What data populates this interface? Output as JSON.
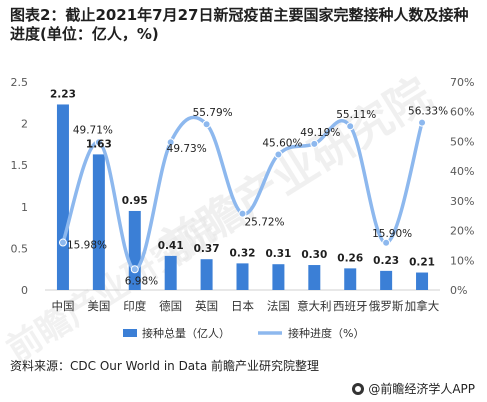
{
  "header": {
    "title": "图表2：截止2021年7月27日新冠疫苗主要国家完整接种人数及接种进度(单位：亿人，%)"
  },
  "chart_data": {
    "type": "bar",
    "categories": [
      "中国",
      "美国",
      "印度",
      "德国",
      "英国",
      "日本",
      "法国",
      "意大利",
      "西班牙",
      "俄罗斯",
      "加拿大"
    ],
    "series": [
      {
        "name": "接种总量（亿人）",
        "type": "bar",
        "axis": "left",
        "color": "#3b7fd6",
        "values": [
          2.23,
          1.63,
          0.95,
          0.41,
          0.37,
          0.32,
          0.31,
          0.3,
          0.26,
          0.23,
          0.21
        ],
        "labels": [
          "2.23",
          "1.63",
          "0.95",
          "0.41",
          "0.37",
          "0.32",
          "0.31",
          "0.30",
          "0.26",
          "0.23",
          "0.21"
        ]
      },
      {
        "name": "接种进度（%）",
        "type": "line",
        "axis": "right",
        "color": "#8db8ee",
        "values": [
          15.98,
          49.71,
          6.98,
          49.73,
          55.79,
          25.72,
          45.6,
          49.19,
          55.11,
          15.9,
          56.33
        ],
        "labels": [
          "15.98%",
          "49.71%",
          "6.98%",
          "49.73%",
          "55.79%",
          "25.72%",
          "45.60%",
          "49.19%",
          "55.11%",
          "15.90%",
          "56.33%"
        ]
      }
    ],
    "y_left": {
      "min": 0,
      "max": 2.5,
      "ticks": [
        "0",
        "0.5",
        "1",
        "1.5",
        "2",
        "2.5"
      ]
    },
    "y_right": {
      "min": 0,
      "max": 70,
      "ticks": [
        "0%",
        "10%",
        "20%",
        "30%",
        "40%",
        "50%",
        "60%",
        "70%"
      ]
    },
    "grid": false,
    "legend_position": "bottom"
  },
  "source": "资料来源：CDC Our World in Data 前瞻产业研究院整理",
  "footer": {
    "brand": "@前瞻经济学人APP",
    "logo_icon": "qianzhan-logo-icon"
  },
  "watermark": "前瞻产业研究院"
}
